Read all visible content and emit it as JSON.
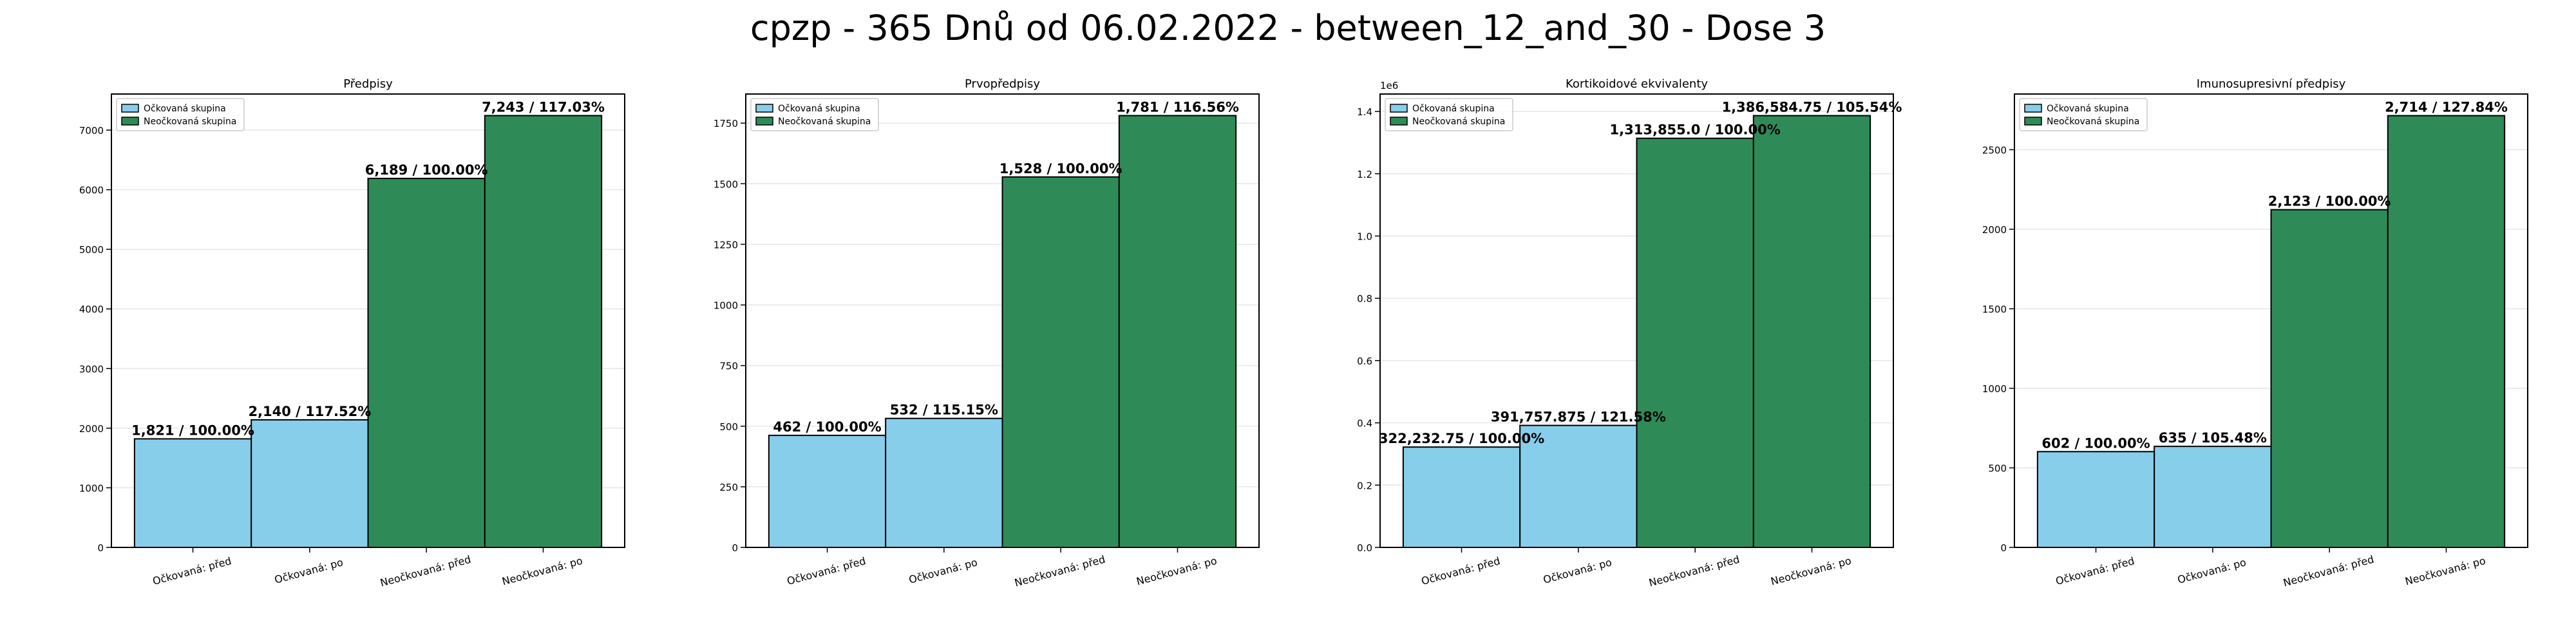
{
  "figure_title": "cpzp - 365 Dnů od 06.02.2022 - between_12_and_30 - Dose 3",
  "colors": {
    "vaccinated": "#87ceeb",
    "unvaccinated": "#2e8b57",
    "edge": "#000000",
    "grid": "#e6e6e6"
  },
  "chart_data": [
    {
      "type": "bar",
      "title": "Předpisy",
      "categories": [
        "Očkovaná: před",
        "Očkovaná: po",
        "Neočkovaná: před",
        "Neočkovaná: po"
      ],
      "values": [
        1821,
        2140,
        6189,
        7243
      ],
      "labels": [
        "1,821 / 100.00%",
        "2,140 / 117.52%",
        "6,189 / 100.00%",
        "7,243 / 117.03%"
      ],
      "groups": [
        "vaccinated",
        "vaccinated",
        "unvaccinated",
        "unvaccinated"
      ],
      "legend": [
        "Očkovaná skupina",
        "Neočkovaná skupina"
      ],
      "legend_position": "top-left",
      "ylim": [
        0,
        7605
      ],
      "yticks": [
        0,
        1000,
        2000,
        3000,
        4000,
        5000,
        6000,
        7000
      ],
      "ytick_labels": [
        "0",
        "1000",
        "2000",
        "3000",
        "4000",
        "5000",
        "6000",
        "7000"
      ],
      "offset_label": "",
      "grid": true
    },
    {
      "type": "bar",
      "title": "Prvopředpisy",
      "categories": [
        "Očkovaná: před",
        "Očkovaná: po",
        "Neočkovaná: před",
        "Neočkovaná: po"
      ],
      "values": [
        462,
        532,
        1528,
        1781
      ],
      "labels": [
        "462 / 100.00%",
        "532 / 115.15%",
        "1,528 / 100.00%",
        "1,781 / 116.56%"
      ],
      "groups": [
        "vaccinated",
        "vaccinated",
        "unvaccinated",
        "unvaccinated"
      ],
      "legend": [
        "Očkovaná skupina",
        "Neočkovaná skupina"
      ],
      "legend_position": "top-left",
      "ylim": [
        0,
        1870
      ],
      "yticks": [
        0,
        250,
        500,
        750,
        1000,
        1250,
        1500,
        1750
      ],
      "ytick_labels": [
        "0",
        "250",
        "500",
        "750",
        "1000",
        "1250",
        "1500",
        "1750"
      ],
      "offset_label": "",
      "grid": true
    },
    {
      "type": "bar",
      "title": "Kortikoidové ekvivalenty",
      "categories": [
        "Očkovaná: před",
        "Očkovaná: po",
        "Neočkovaná: před",
        "Neočkovaná: po"
      ],
      "values": [
        322232.75,
        391757.875,
        1313855.0,
        1386584.75
      ],
      "labels": [
        "322,232.75 / 100.00%",
        "391,757.875 / 121.58%",
        "1,313,855.0 / 100.00%",
        "1,386,584.75 / 105.54%"
      ],
      "groups": [
        "vaccinated",
        "vaccinated",
        "unvaccinated",
        "unvaccinated"
      ],
      "legend": [
        "Očkovaná skupina",
        "Neočkovaná skupina"
      ],
      "legend_position": "top-left",
      "ylim": [
        0,
        1456000
      ],
      "yticks": [
        0,
        200000,
        400000,
        600000,
        800000,
        1000000,
        1200000,
        1400000
      ],
      "ytick_labels": [
        "0.0",
        "0.2",
        "0.4",
        "0.6",
        "0.8",
        "1.0",
        "1.2",
        "1.4"
      ],
      "offset_label": "1e6",
      "grid": true
    },
    {
      "type": "bar",
      "title": "Imunosupresivní předpisy",
      "categories": [
        "Očkovaná: před",
        "Očkovaná: po",
        "Neočkovaná: před",
        "Neočkovaná: po"
      ],
      "values": [
        602,
        635,
        2123,
        2714
      ],
      "labels": [
        "602 / 100.00%",
        "635 / 105.48%",
        "2,123 / 100.00%",
        "2,714 / 127.84%"
      ],
      "groups": [
        "vaccinated",
        "vaccinated",
        "unvaccinated",
        "unvaccinated"
      ],
      "legend": [
        "Očkovaná skupina",
        "Neočkovaná skupina"
      ],
      "legend_position": "top-left",
      "ylim": [
        0,
        2850
      ],
      "yticks": [
        0,
        500,
        1000,
        1500,
        2000,
        2500
      ],
      "ytick_labels": [
        "0",
        "500",
        "1000",
        "1500",
        "2000",
        "2500"
      ],
      "offset_label": "",
      "grid": true
    }
  ]
}
